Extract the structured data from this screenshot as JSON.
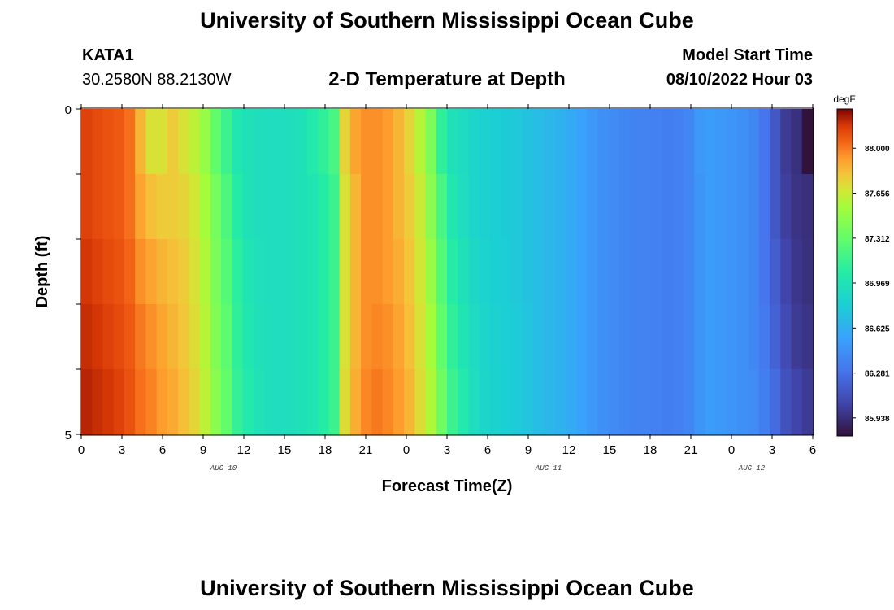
{
  "header": {
    "title": "University of Southern Mississippi Ocean Cube",
    "station": "KATA1",
    "coords": "30.2580N  88.2130W",
    "plot_title": "2-D Temperature at Depth",
    "model_label": "Model Start Time",
    "model_time": "08/10/2022 Hour 03"
  },
  "footer": {
    "title": "University of Southern Mississippi Ocean Cube"
  },
  "chart_data": {
    "type": "heatmap",
    "title": "2-D Temperature at Depth",
    "xlabel": "Forecast Time(Z)",
    "ylabel": "Depth (ft)",
    "x_tick_labels": [
      "0",
      "3",
      "6",
      "9",
      "12",
      "15",
      "18",
      "21",
      "0",
      "3",
      "6",
      "9",
      "12",
      "15",
      "18",
      "21",
      "0",
      "3",
      "6"
    ],
    "day_labels": [
      {
        "text": "AUG 10",
        "at_tick": 3.5
      },
      {
        "text": "AUG 11",
        "at_tick": 11.5
      },
      {
        "text": "AUG 12",
        "at_tick": 16.5
      }
    ],
    "y_tick_labels": [
      "0",
      "5"
    ],
    "ylim": [
      0,
      5
    ],
    "colorbar": {
      "unit": "degF",
      "range": [
        85.8,
        88.3
      ],
      "labels": [
        "88.000",
        "87.656",
        "87.312",
        "86.969",
        "86.625",
        "86.281",
        "85.938"
      ],
      "label_values": [
        88.0,
        87.656,
        87.312,
        86.969,
        86.625,
        86.281,
        85.938
      ]
    },
    "series": [
      {
        "name": "0 ft",
        "values": [
          88.15,
          88.12,
          88.1,
          88.08,
          88.02,
          87.85,
          87.7,
          87.7,
          87.78,
          87.7,
          87.62,
          87.5,
          87.3,
          87.15,
          87.0,
          86.95,
          86.93,
          86.92,
          86.92,
          86.93,
          86.95,
          87.02,
          87.1,
          87.2,
          87.75,
          87.9,
          87.95,
          87.95,
          87.92,
          87.85,
          87.75,
          87.6,
          87.4,
          87.1,
          86.95,
          86.9,
          86.85,
          86.82,
          86.8,
          86.78,
          86.76,
          86.73,
          86.7,
          86.67,
          86.64,
          86.6,
          86.55,
          86.5,
          86.45,
          86.42,
          86.4,
          86.38,
          86.37,
          86.36,
          86.35,
          86.36,
          86.4,
          86.5,
          86.52,
          86.5,
          86.48,
          86.45,
          86.4,
          86.3,
          86.15,
          86.0,
          85.95,
          85.7
        ]
      },
      {
        "name": "1 ft",
        "values": [
          88.15,
          88.12,
          88.1,
          88.08,
          88.02,
          87.9,
          87.82,
          87.78,
          87.78,
          87.75,
          87.68,
          87.55,
          87.38,
          87.22,
          87.05,
          86.95,
          86.93,
          86.92,
          86.92,
          86.93,
          86.95,
          86.98,
          87.05,
          87.15,
          87.7,
          87.85,
          87.95,
          87.95,
          87.92,
          87.85,
          87.78,
          87.65,
          87.45,
          87.2,
          87.0,
          86.92,
          86.85,
          86.82,
          86.8,
          86.78,
          86.76,
          86.73,
          86.7,
          86.67,
          86.64,
          86.6,
          86.55,
          86.5,
          86.45,
          86.42,
          86.4,
          86.38,
          86.37,
          86.36,
          86.35,
          86.36,
          86.4,
          86.48,
          86.52,
          86.5,
          86.48,
          86.45,
          86.4,
          86.3,
          86.15,
          86.02,
          85.96,
          85.94
        ]
      },
      {
        "name": "2 ft",
        "values": [
          88.18,
          88.15,
          88.12,
          88.1,
          88.05,
          87.95,
          87.9,
          87.85,
          87.82,
          87.78,
          87.7,
          87.58,
          87.4,
          87.25,
          87.08,
          86.98,
          86.94,
          86.92,
          86.92,
          86.93,
          86.95,
          86.98,
          87.05,
          87.15,
          87.7,
          87.85,
          87.95,
          87.95,
          87.92,
          87.87,
          87.8,
          87.68,
          87.5,
          87.25,
          87.05,
          86.95,
          86.88,
          86.84,
          86.81,
          86.79,
          86.76,
          86.73,
          86.7,
          86.67,
          86.64,
          86.6,
          86.55,
          86.5,
          86.45,
          86.42,
          86.4,
          86.38,
          86.37,
          86.36,
          86.35,
          86.36,
          86.4,
          86.48,
          86.52,
          86.5,
          86.48,
          86.45,
          86.4,
          86.3,
          86.18,
          86.05,
          85.98,
          85.95
        ]
      },
      {
        "name": "3 ft",
        "values": [
          88.2,
          88.18,
          88.15,
          88.12,
          88.08,
          88.0,
          87.95,
          87.9,
          87.85,
          87.8,
          87.72,
          87.6,
          87.42,
          87.28,
          87.1,
          87.0,
          86.95,
          86.93,
          86.92,
          86.93,
          86.95,
          86.98,
          87.05,
          87.15,
          87.7,
          87.85,
          87.95,
          87.97,
          87.95,
          87.9,
          87.82,
          87.7,
          87.55,
          87.3,
          87.1,
          86.98,
          86.9,
          86.85,
          86.82,
          86.8,
          86.77,
          86.74,
          86.7,
          86.67,
          86.64,
          86.6,
          86.55,
          86.5,
          86.45,
          86.42,
          86.4,
          86.38,
          86.37,
          86.36,
          86.35,
          86.36,
          86.4,
          86.48,
          86.52,
          86.5,
          86.48,
          86.45,
          86.4,
          86.32,
          86.2,
          86.08,
          86.0,
          85.97
        ]
      },
      {
        "name": "4 ft",
        "values": [
          88.22,
          88.2,
          88.18,
          88.15,
          88.1,
          88.02,
          87.98,
          87.92,
          87.88,
          87.82,
          87.75,
          87.62,
          87.45,
          87.3,
          87.12,
          87.02,
          86.96,
          86.93,
          86.92,
          86.93,
          86.95,
          86.98,
          87.05,
          87.15,
          87.72,
          87.87,
          87.97,
          88.0,
          87.97,
          87.92,
          87.85,
          87.72,
          87.58,
          87.35,
          87.15,
          87.02,
          86.92,
          86.86,
          86.83,
          86.8,
          86.77,
          86.74,
          86.7,
          86.67,
          86.64,
          86.6,
          86.55,
          86.5,
          86.45,
          86.42,
          86.4,
          86.38,
          86.37,
          86.36,
          86.35,
          86.36,
          86.4,
          86.48,
          86.52,
          86.5,
          86.48,
          86.45,
          86.42,
          86.35,
          86.25,
          86.12,
          86.05,
          86.0
        ]
      }
    ]
  }
}
